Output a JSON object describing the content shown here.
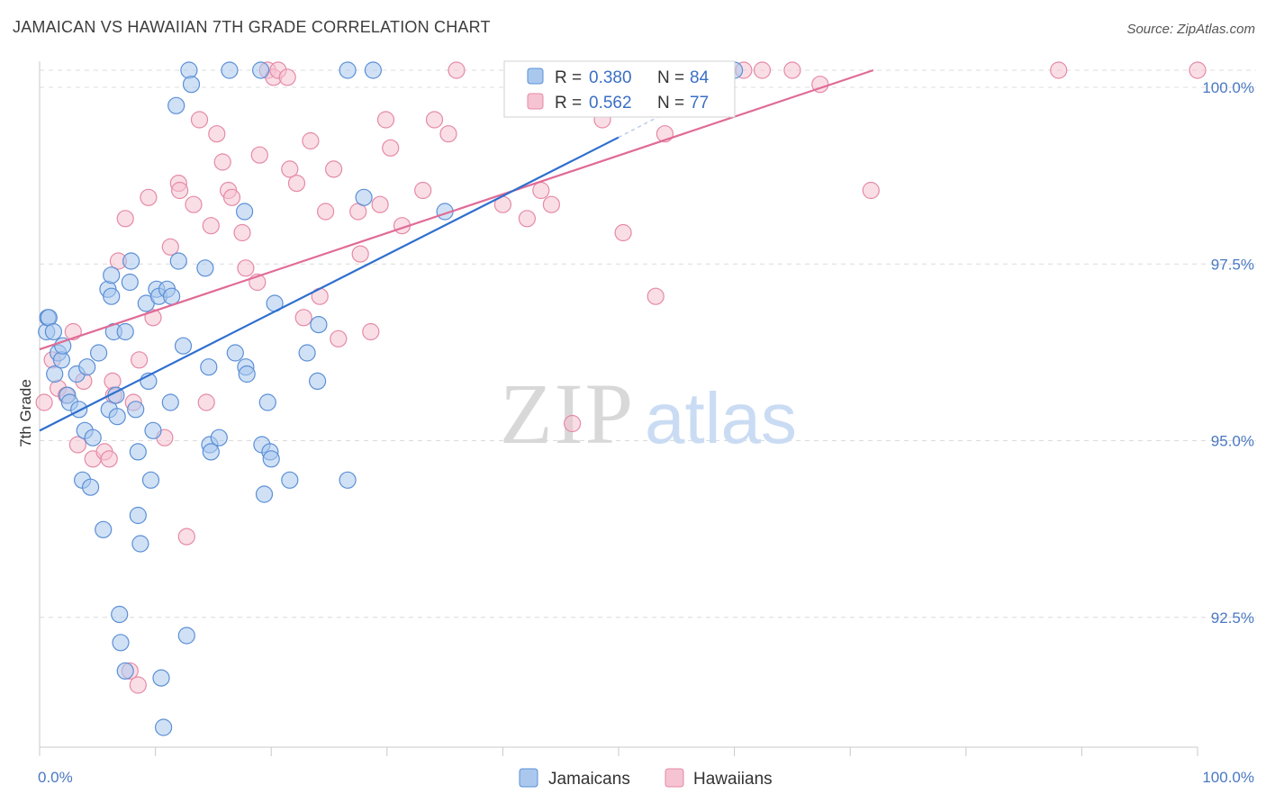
{
  "title": "JAMAICAN VS HAWAIIAN 7TH GRADE CORRELATION CHART",
  "source": "Source: ZipAtlas.com",
  "watermark": {
    "zip": "ZIP",
    "atlas": "atlas"
  },
  "colors": {
    "blue_fill": "#aac8ee",
    "blue_stroke": "#5b8fd6",
    "blue_line": "#2e6fcf",
    "pink_fill": "#f6c3d2",
    "pink_stroke": "#e58aa6",
    "pink_line": "#e06b96",
    "tick_text": "#4a78c2",
    "grid": "#dcdcdc"
  },
  "stats_legend": {
    "r_label": "R =",
    "n_label": "N =",
    "rows": [
      {
        "r_value": "0.380",
        "n_value": "84"
      },
      {
        "r_value": "0.562",
        "n_value": "77"
      }
    ]
  },
  "chart_data": {
    "type": "scatter",
    "title": "JAMAICAN VS HAWAIIAN 7TH GRADE CORRELATION CHART",
    "xlabel": "",
    "ylabel": "7th Grade",
    "xlim": [
      0,
      100
    ],
    "ylim": [
      89.75,
      100.2
    ],
    "x_tick_labels": [
      "0.0%",
      "100.0%"
    ],
    "y_ticks": [
      92.5,
      95.0,
      97.5,
      100.0
    ],
    "y_tick_labels": [
      "92.5%",
      "95.0%",
      "97.5%",
      "100.0%"
    ],
    "grid": true,
    "legend_position": "bottom",
    "series": [
      {
        "name": "Jamaicans",
        "r": 0.38,
        "n": 84,
        "trend": {
          "x": [
            0.0,
            50.0
          ],
          "y": [
            94.9,
            99.05
          ],
          "dashed_to": {
            "x": 60.0,
            "y": 99.9
          }
        },
        "points": [
          [
            0.6,
            96.3
          ],
          [
            0.7,
            96.5
          ],
          [
            0.8,
            96.5
          ],
          [
            1.2,
            96.3
          ],
          [
            1.3,
            95.7
          ],
          [
            1.6,
            96.0
          ],
          [
            1.9,
            95.9
          ],
          [
            2.0,
            96.1
          ],
          [
            2.4,
            95.4
          ],
          [
            2.6,
            95.3
          ],
          [
            3.2,
            95.7
          ],
          [
            3.4,
            95.2
          ],
          [
            3.7,
            94.2
          ],
          [
            3.9,
            94.9
          ],
          [
            4.1,
            95.8
          ],
          [
            4.4,
            94.1
          ],
          [
            4.6,
            94.8
          ],
          [
            5.1,
            96.0
          ],
          [
            5.5,
            93.5
          ],
          [
            5.9,
            96.9
          ],
          [
            6.0,
            95.2
          ],
          [
            6.2,
            96.8
          ],
          [
            6.2,
            97.1
          ],
          [
            6.4,
            96.3
          ],
          [
            6.6,
            95.4
          ],
          [
            6.7,
            95.1
          ],
          [
            6.9,
            92.3
          ],
          [
            7.0,
            91.9
          ],
          [
            7.4,
            91.5
          ],
          [
            7.4,
            96.3
          ],
          [
            7.8,
            97.0
          ],
          [
            7.9,
            97.3
          ],
          [
            8.3,
            95.2
          ],
          [
            8.5,
            94.6
          ],
          [
            8.5,
            93.7
          ],
          [
            8.7,
            93.3
          ],
          [
            9.2,
            96.7
          ],
          [
            9.4,
            95.6
          ],
          [
            9.6,
            94.2
          ],
          [
            9.8,
            94.9
          ],
          [
            10.1,
            96.9
          ],
          [
            10.3,
            96.8
          ],
          [
            10.5,
            91.4
          ],
          [
            10.7,
            90.7
          ],
          [
            11.0,
            96.9
          ],
          [
            11.3,
            95.3
          ],
          [
            11.4,
            96.8
          ],
          [
            11.8,
            99.5
          ],
          [
            12.0,
            97.3
          ],
          [
            12.4,
            96.1
          ],
          [
            12.7,
            92.0
          ],
          [
            12.9,
            100.0
          ],
          [
            13.1,
            99.8
          ],
          [
            14.3,
            97.2
          ],
          [
            14.6,
            95.8
          ],
          [
            14.7,
            94.7
          ],
          [
            14.8,
            94.6
          ],
          [
            15.5,
            94.8
          ],
          [
            16.4,
            100.0
          ],
          [
            16.9,
            96.0
          ],
          [
            17.7,
            98.0
          ],
          [
            17.8,
            95.8
          ],
          [
            17.9,
            95.7
          ],
          [
            19.1,
            100.0
          ],
          [
            19.2,
            94.7
          ],
          [
            19.4,
            94.0
          ],
          [
            19.7,
            95.3
          ],
          [
            19.9,
            94.6
          ],
          [
            20.0,
            94.5
          ],
          [
            20.3,
            96.7
          ],
          [
            21.6,
            94.2
          ],
          [
            23.1,
            96.0
          ],
          [
            24.0,
            95.6
          ],
          [
            24.1,
            96.4
          ],
          [
            26.6,
            100.0
          ],
          [
            26.6,
            94.2
          ],
          [
            28.0,
            98.2
          ],
          [
            28.8,
            100.0
          ],
          [
            35.0,
            98.0
          ],
          [
            43.5,
            100.0
          ],
          [
            45.0,
            100.0
          ],
          [
            49.0,
            100.0
          ],
          [
            55.0,
            100.0
          ],
          [
            60.0,
            100.0
          ]
        ]
      },
      {
        "name": "Hawaiians",
        "r": 0.562,
        "n": 77,
        "trend": {
          "x": [
            0.0,
            72.0
          ],
          "y": [
            96.05,
            100.0
          ]
        },
        "points": [
          [
            0.4,
            95.3
          ],
          [
            1.1,
            95.9
          ],
          [
            1.6,
            95.5
          ],
          [
            2.3,
            95.4
          ],
          [
            2.9,
            96.3
          ],
          [
            3.3,
            94.7
          ],
          [
            3.8,
            95.6
          ],
          [
            4.6,
            94.5
          ],
          [
            5.6,
            94.6
          ],
          [
            6.0,
            94.5
          ],
          [
            6.3,
            95.6
          ],
          [
            6.4,
            95.4
          ],
          [
            6.8,
            97.3
          ],
          [
            7.4,
            97.9
          ],
          [
            7.8,
            91.5
          ],
          [
            8.1,
            95.3
          ],
          [
            8.5,
            91.3
          ],
          [
            8.6,
            95.9
          ],
          [
            9.4,
            98.2
          ],
          [
            9.8,
            96.5
          ],
          [
            10.8,
            94.8
          ],
          [
            11.3,
            97.5
          ],
          [
            12.0,
            98.4
          ],
          [
            12.1,
            98.3
          ],
          [
            12.7,
            93.4
          ],
          [
            13.3,
            98.1
          ],
          [
            13.8,
            99.3
          ],
          [
            14.4,
            95.3
          ],
          [
            14.8,
            97.8
          ],
          [
            15.3,
            99.1
          ],
          [
            15.8,
            98.7
          ],
          [
            16.3,
            98.3
          ],
          [
            16.6,
            98.2
          ],
          [
            17.5,
            97.7
          ],
          [
            17.8,
            97.2
          ],
          [
            18.8,
            97.0
          ],
          [
            19.0,
            98.8
          ],
          [
            19.7,
            100.0
          ],
          [
            20.2,
            99.9
          ],
          [
            20.6,
            100.0
          ],
          [
            21.4,
            99.9
          ],
          [
            21.6,
            98.6
          ],
          [
            22.2,
            98.4
          ],
          [
            22.8,
            96.5
          ],
          [
            23.4,
            99.0
          ],
          [
            24.2,
            96.8
          ],
          [
            24.7,
            98.0
          ],
          [
            25.4,
            98.6
          ],
          [
            25.8,
            96.2
          ],
          [
            27.5,
            98.0
          ],
          [
            27.7,
            97.4
          ],
          [
            28.6,
            96.3
          ],
          [
            29.4,
            98.1
          ],
          [
            29.9,
            99.3
          ],
          [
            30.3,
            98.9
          ],
          [
            31.3,
            97.8
          ],
          [
            33.1,
            98.3
          ],
          [
            34.1,
            99.3
          ],
          [
            35.3,
            99.1
          ],
          [
            36.0,
            100.0
          ],
          [
            40.0,
            98.1
          ],
          [
            41.2,
            99.8
          ],
          [
            42.1,
            97.9
          ],
          [
            43.3,
            98.3
          ],
          [
            44.2,
            98.1
          ],
          [
            46.0,
            95.0
          ],
          [
            48.6,
            99.3
          ],
          [
            50.4,
            97.7
          ],
          [
            53.2,
            96.8
          ],
          [
            54.0,
            99.1
          ],
          [
            60.8,
            100.0
          ],
          [
            62.4,
            100.0
          ],
          [
            65.0,
            100.0
          ],
          [
            67.4,
            99.8
          ],
          [
            71.8,
            98.3
          ],
          [
            88.0,
            100.0
          ],
          [
            100.0,
            100.0
          ]
        ]
      }
    ]
  },
  "bottom_legend": [
    "Jamaicans",
    "Hawaiians"
  ]
}
